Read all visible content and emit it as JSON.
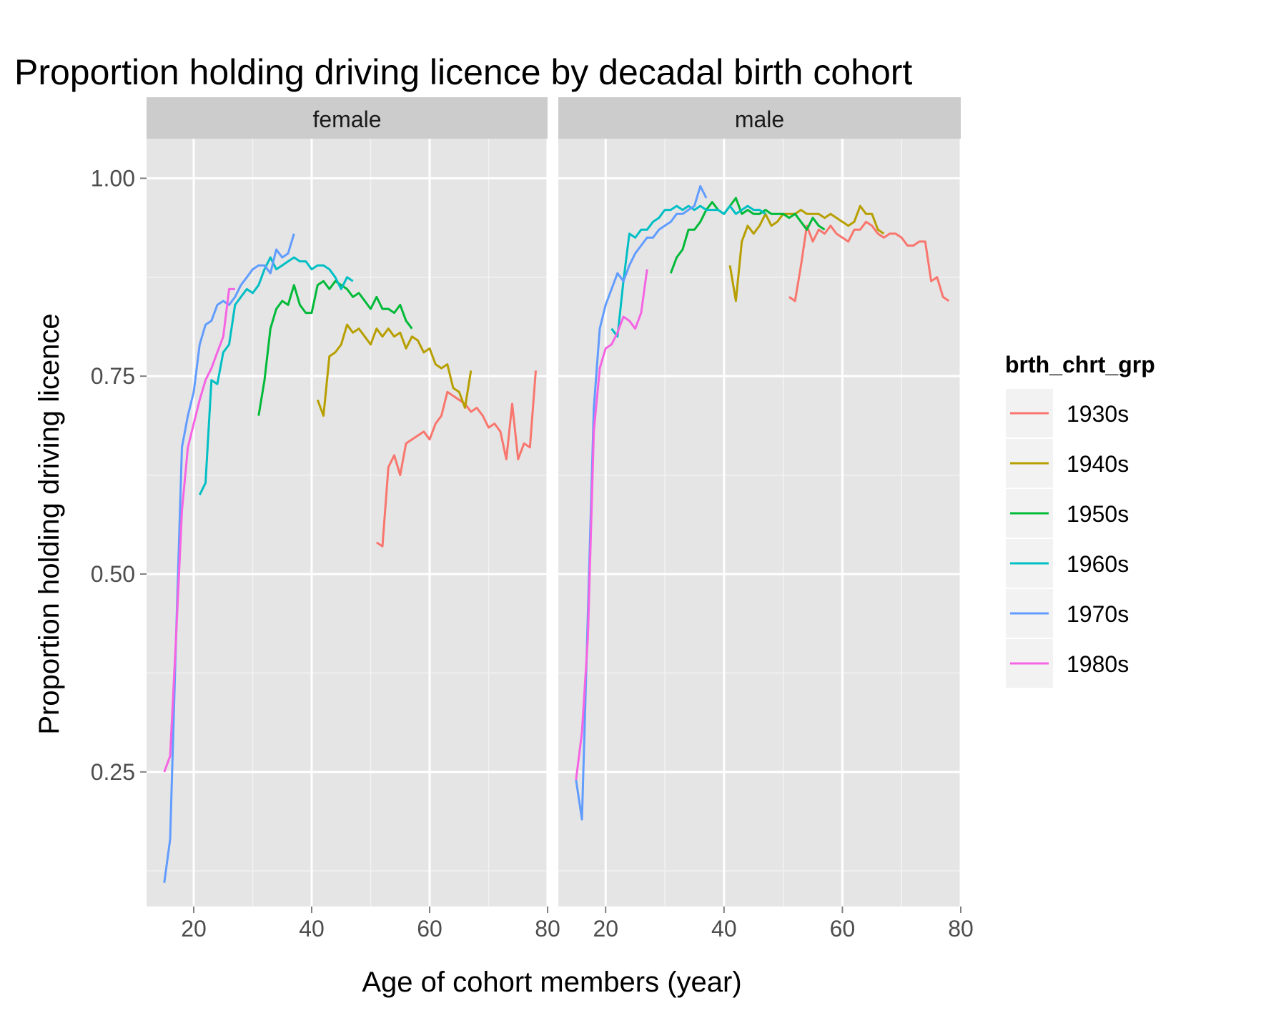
{
  "chart_data": {
    "type": "line",
    "title": "Proportion holding driving licence by decadal birth cohort",
    "xlabel": "Age of cohort members (year)",
    "ylabel": "Proportion holding driving licence",
    "xlim": [
      12,
      80
    ],
    "ylim": [
      0.08,
      1.05
    ],
    "x_ticks": [
      20,
      40,
      60,
      80
    ],
    "y_ticks": [
      0.25,
      0.5,
      0.75,
      1.0
    ],
    "y_tick_labels": [
      "0.25",
      "0.50",
      "0.75",
      "1.00"
    ],
    "grid": true,
    "legend": {
      "title": "brth_chrt_grp",
      "placement": "right"
    },
    "series_colors": {
      "1930s": "#F8766D",
      "1940s": "#B79F00",
      "1950s": "#00BA38",
      "1960s": "#00BFC4",
      "1970s": "#619CFF",
      "1980s": "#F564E3"
    },
    "panels": [
      {
        "facet": "female",
        "series": [
          {
            "name": "1930s",
            "x": [
              51,
              52,
              53,
              54,
              55,
              56,
              57,
              58,
              59,
              60,
              61,
              62,
              63,
              64,
              65,
              66,
              67,
              68,
              69,
              70,
              71,
              72,
              73,
              74,
              75,
              76,
              77,
              78
            ],
            "y": [
              0.54,
              0.535,
              0.635,
              0.65,
              0.625,
              0.665,
              0.67,
              0.675,
              0.68,
              0.67,
              0.69,
              0.7,
              0.73,
              0.725,
              0.72,
              0.715,
              0.705,
              0.71,
              0.7,
              0.685,
              0.69,
              0.68,
              0.645,
              0.715,
              0.645,
              0.665,
              0.66,
              0.757
            ]
          },
          {
            "name": "1940s",
            "x": [
              41,
              42,
              43,
              44,
              45,
              46,
              47,
              48,
              49,
              50,
              51,
              52,
              53,
              54,
              55,
              56,
              57,
              58,
              59,
              60,
              61,
              62,
              63,
              64,
              65,
              66,
              67
            ],
            "y": [
              0.72,
              0.7,
              0.775,
              0.78,
              0.79,
              0.815,
              0.805,
              0.81,
              0.8,
              0.79,
              0.81,
              0.8,
              0.81,
              0.8,
              0.805,
              0.785,
              0.8,
              0.795,
              0.78,
              0.785,
              0.765,
              0.76,
              0.765,
              0.735,
              0.73,
              0.71,
              0.757
            ]
          },
          {
            "name": "1950s",
            "x": [
              31,
              32,
              33,
              34,
              35,
              36,
              37,
              38,
              39,
              40,
              41,
              42,
              43,
              44,
              45,
              46,
              47,
              48,
              49,
              50,
              51,
              52,
              53,
              54,
              55,
              56,
              57
            ],
            "y": [
              0.7,
              0.745,
              0.81,
              0.835,
              0.845,
              0.84,
              0.865,
              0.84,
              0.83,
              0.83,
              0.865,
              0.87,
              0.86,
              0.87,
              0.865,
              0.86,
              0.85,
              0.855,
              0.845,
              0.835,
              0.85,
              0.835,
              0.835,
              0.83,
              0.84,
              0.82,
              0.81
            ]
          },
          {
            "name": "1960s",
            "x": [
              21,
              22,
              23,
              24,
              25,
              26,
              27,
              28,
              29,
              30,
              31,
              32,
              33,
              34,
              35,
              36,
              37,
              38,
              39,
              40,
              41,
              42,
              43,
              44,
              45,
              46,
              47
            ],
            "y": [
              0.6,
              0.615,
              0.745,
              0.74,
              0.78,
              0.79,
              0.84,
              0.85,
              0.86,
              0.855,
              0.865,
              0.885,
              0.9,
              0.885,
              0.89,
              0.895,
              0.9,
              0.895,
              0.895,
              0.885,
              0.89,
              0.89,
              0.885,
              0.875,
              0.86,
              0.875,
              0.87
            ]
          },
          {
            "name": "1970s",
            "x": [
              15,
              16,
              17,
              18,
              19,
              20,
              21,
              22,
              23,
              24,
              25,
              26,
              27,
              28,
              29,
              30,
              31,
              32,
              33,
              34,
              35,
              36,
              37
            ],
            "y": [
              0.11,
              0.165,
              0.42,
              0.66,
              0.7,
              0.73,
              0.79,
              0.815,
              0.82,
              0.84,
              0.845,
              0.84,
              0.85,
              0.865,
              0.875,
              0.885,
              0.89,
              0.89,
              0.88,
              0.91,
              0.9,
              0.905,
              0.93
            ]
          },
          {
            "name": "1980s",
            "x": [
              15,
              16,
              17,
              18,
              19,
              20,
              21,
              22,
              23,
              24,
              25,
              26,
              27
            ],
            "y": [
              0.25,
              0.27,
              0.42,
              0.58,
              0.66,
              0.69,
              0.72,
              0.745,
              0.76,
              0.78,
              0.8,
              0.86,
              0.86
            ]
          }
        ]
      },
      {
        "facet": "male",
        "series": [
          {
            "name": "1930s",
            "x": [
              51,
              52,
              53,
              54,
              55,
              56,
              57,
              58,
              59,
              60,
              61,
              62,
              63,
              64,
              65,
              66,
              67,
              68,
              69,
              70,
              71,
              72,
              73,
              74,
              75,
              76,
              77,
              78
            ],
            "y": [
              0.85,
              0.845,
              0.89,
              0.94,
              0.92,
              0.935,
              0.93,
              0.94,
              0.93,
              0.925,
              0.92,
              0.935,
              0.935,
              0.945,
              0.94,
              0.93,
              0.925,
              0.93,
              0.93,
              0.925,
              0.915,
              0.915,
              0.92,
              0.92,
              0.87,
              0.875,
              0.85,
              0.845
            ]
          },
          {
            "name": "1940s",
            "x": [
              41,
              42,
              43,
              44,
              45,
              46,
              47,
              48,
              49,
              50,
              51,
              52,
              53,
              54,
              55,
              56,
              57,
              58,
              59,
              60,
              61,
              62,
              63,
              64,
              65,
              66,
              67
            ],
            "y": [
              0.89,
              0.845,
              0.92,
              0.94,
              0.93,
              0.94,
              0.955,
              0.94,
              0.945,
              0.955,
              0.955,
              0.955,
              0.96,
              0.955,
              0.955,
              0.955,
              0.95,
              0.955,
              0.95,
              0.945,
              0.94,
              0.945,
              0.965,
              0.955,
              0.955,
              0.935,
              0.93
            ]
          },
          {
            "name": "1950s",
            "x": [
              31,
              32,
              33,
              34,
              35,
              36,
              37,
              38,
              39,
              40,
              41,
              42,
              43,
              44,
              45,
              46,
              47,
              48,
              49,
              50,
              51,
              52,
              53,
              54,
              55,
              56,
              57
            ],
            "y": [
              0.88,
              0.9,
              0.91,
              0.935,
              0.935,
              0.945,
              0.96,
              0.97,
              0.96,
              0.955,
              0.965,
              0.975,
              0.955,
              0.96,
              0.955,
              0.955,
              0.96,
              0.955,
              0.955,
              0.955,
              0.95,
              0.955,
              0.945,
              0.935,
              0.95,
              0.94,
              0.935
            ]
          },
          {
            "name": "1960s",
            "x": [
              21,
              22,
              23,
              24,
              25,
              26,
              27,
              28,
              29,
              30,
              31,
              32,
              33,
              34,
              35,
              36,
              37,
              38,
              39,
              40,
              41,
              42,
              43,
              44,
              45,
              46,
              47
            ],
            "y": [
              0.81,
              0.8,
              0.87,
              0.93,
              0.925,
              0.935,
              0.935,
              0.945,
              0.95,
              0.96,
              0.96,
              0.965,
              0.96,
              0.965,
              0.96,
              0.965,
              0.96,
              0.96,
              0.96,
              0.955,
              0.965,
              0.955,
              0.96,
              0.965,
              0.96,
              0.96,
              0.955
            ]
          },
          {
            "name": "1970s",
            "x": [
              15,
              16,
              17,
              18,
              19,
              20,
              21,
              22,
              23,
              24,
              25,
              26,
              27,
              28,
              29,
              30,
              31,
              32,
              33,
              34,
              35,
              36,
              37
            ],
            "y": [
              0.24,
              0.19,
              0.45,
              0.71,
              0.81,
              0.84,
              0.86,
              0.88,
              0.87,
              0.89,
              0.905,
              0.915,
              0.925,
              0.925,
              0.935,
              0.94,
              0.945,
              0.955,
              0.955,
              0.96,
              0.965,
              0.99,
              0.975
            ]
          },
          {
            "name": "1980s",
            "x": [
              15,
              16,
              17,
              18,
              19,
              20,
              21,
              22,
              23,
              24,
              25,
              26,
              27
            ],
            "y": [
              0.24,
              0.3,
              0.42,
              0.68,
              0.76,
              0.785,
              0.79,
              0.805,
              0.825,
              0.82,
              0.81,
              0.83,
              0.885
            ]
          }
        ]
      }
    ]
  }
}
